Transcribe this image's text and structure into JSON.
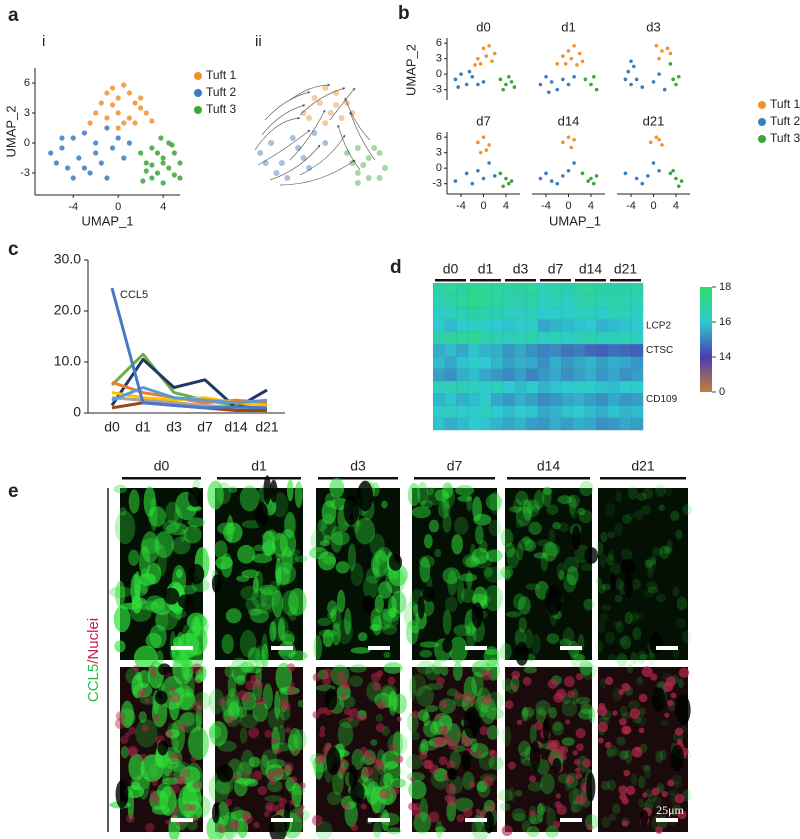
{
  "panel_labels": [
    "a",
    "b",
    "c",
    "d",
    "e"
  ],
  "chart_data": [
    {
      "type": "scatter",
      "subtitle": "i",
      "xlabel": "UMAP_1",
      "ylabel": "UMAP_2",
      "xlim": [
        -7.4,
        5.5
      ],
      "ylim": [
        -5.2,
        7.5
      ],
      "xticks": [
        -4,
        0,
        4
      ],
      "yticks": [
        -3,
        0,
        3,
        6
      ],
      "legend": "right",
      "series": [
        {
          "name": "Tuft 1",
          "color": "#f0922b",
          "x": [
            -2,
            -1.5,
            -1,
            -0.5,
            0,
            0.5,
            1,
            1.5,
            2,
            2.5,
            -1,
            0,
            1,
            2,
            -0.5,
            0.5,
            1.5,
            -2.5,
            3,
            0
          ],
          "y": [
            3,
            4,
            5,
            5.5,
            4.5,
            5.8,
            5,
            4,
            4.5,
            3,
            2.5,
            3,
            2.5,
            3.5,
            3.8,
            2,
            2,
            2,
            2.2,
            1.5
          ]
        },
        {
          "name": "Tuft 2",
          "color": "#3a7dbf",
          "x": [
            -6,
            -5.5,
            -5,
            -4.5,
            -4,
            -3.5,
            -3,
            -2.5,
            -2,
            -1.5,
            -1,
            -0.5,
            0,
            0.5,
            1,
            -4,
            -3,
            -2,
            -5,
            -1
          ],
          "y": [
            -1,
            -2,
            -0.5,
            -2.5,
            0.5,
            -1.5,
            1,
            -3,
            0,
            -2,
            1.5,
            -0.5,
            0.5,
            -1.5,
            0,
            -3.5,
            -2.5,
            -1,
            0.5,
            -3.5
          ]
        },
        {
          "name": "Tuft 3",
          "color": "#3aa63a",
          "x": [
            2,
            2.5,
            3,
            3.5,
            4,
            4.5,
            5,
            5.5,
            3,
            4,
            5,
            3.5,
            4.5,
            2.5,
            5.5,
            4,
            3,
            4.8,
            3.8,
            2.2
          ],
          "y": [
            -1,
            -2,
            -0.5,
            -3,
            -1.5,
            -2.5,
            -1,
            -2,
            -3.5,
            -4,
            -3.2,
            -1,
            0,
            -2.8,
            -3.5,
            -2,
            -2.2,
            -0.2,
            0.5,
            -3.8
          ]
        }
      ]
    },
    {
      "type": "stream",
      "subtitle": "ii",
      "xlim": [
        -7.4,
        5.5
      ],
      "ylim": [
        -5.2,
        7.5
      ],
      "series": [
        {
          "color": "#f0a050",
          "x": [
            -2,
            -1,
            0,
            1,
            2,
            -1.5,
            0.5,
            1.5,
            -0.5,
            2.5,
            0,
            1
          ],
          "y": [
            3,
            4.5,
            5.5,
            5,
            4,
            2.5,
            3,
            2.5,
            4,
            3,
            2,
            3.8
          ]
        },
        {
          "color": "#5a90c8",
          "x": [
            -6,
            -5,
            -4,
            -3,
            -2,
            -1,
            0,
            -4.5,
            -3.5,
            -2.5,
            -1.5,
            -5.5
          ],
          "y": [
            -1,
            0,
            -2,
            0.5,
            -1.5,
            1,
            0,
            -3,
            -3.5,
            -0.5,
            -2.5,
            -2
          ]
        },
        {
          "color": "#5cb85c",
          "x": [
            2,
            3,
            4,
            5,
            5.5,
            3,
            4,
            2.5,
            4.5,
            3.5,
            5,
            3
          ],
          "y": [
            -1,
            -0.5,
            -1.5,
            -1,
            -2.5,
            -3,
            -3.5,
            -2,
            -0.5,
            -2.2,
            -3.5,
            -4
          ]
        }
      ]
    },
    {
      "type": "facet-scatter",
      "xlabel": "UMAP_1",
      "ylabel": "UMAP_2",
      "xlim": [
        -6.5,
        6.5
      ],
      "ylim": [
        -5,
        7
      ],
      "xticks": [
        -4,
        0,
        4
      ],
      "yticks": [
        -3,
        0,
        3,
        6
      ],
      "legend": "right",
      "series": [
        {
          "name": "Tuft 1",
          "color": "#f0922b"
        },
        {
          "name": "Tuft 2",
          "color": "#3a7dbf"
        },
        {
          "name": "Tuft 3",
          "color": "#3aa63a"
        }
      ],
      "facets": [
        {
          "title": "d0",
          "series": [
            {
              "x": [
                -1,
                0,
                1,
                2,
                -0.5,
                0.5,
                1.5,
                -1.5
              ],
              "y": [
                3,
                5,
                5.5,
                4,
                2,
                3.5,
                2.5,
                1.8
              ]
            },
            {
              "x": [
                -5,
                -4,
                -3,
                -2,
                -1,
                0,
                -4.5,
                -2.5
              ],
              "y": [
                -1,
                0,
                -2,
                -0.5,
                -2,
                -1.5,
                -2.5,
                0.5
              ]
            },
            {
              "x": [
                3,
                4,
                5,
                3.5,
                4.5,
                5.5
              ],
              "y": [
                -1,
                -2,
                -1.5,
                -3,
                -0.5,
                -2.5
              ]
            }
          ]
        },
        {
          "title": "d1",
          "series": [
            {
              "x": [
                -2,
                -1,
                0,
                1,
                2,
                2.5,
                -0.5,
                0.5,
                1.5
              ],
              "y": [
                2,
                3.5,
                4.5,
                5.5,
                4,
                2.5,
                2,
                3,
                1.8
              ]
            },
            {
              "x": [
                -5,
                -4,
                -3,
                -2,
                -1,
                0,
                1,
                -3.5
              ],
              "y": [
                -2,
                -0.5,
                -1.5,
                -3,
                -1,
                -2,
                -0.5,
                -3.5
              ]
            },
            {
              "x": [
                3,
                4,
                5,
                4.5
              ],
              "y": [
                -1,
                -2,
                -3,
                -0.5
              ]
            }
          ]
        },
        {
          "title": "d3",
          "series": [
            {
              "x": [
                0.5,
                1.5,
                2.5,
                3,
                1
              ],
              "y": [
                5.5,
                4.5,
                5,
                4,
                3
              ]
            },
            {
              "x": [
                -5,
                -4.5,
                -4,
                -3.5,
                -3,
                -2,
                0,
                1,
                2,
                -4
              ],
              "y": [
                -1,
                0.5,
                -2,
                1.5,
                -1,
                -2.5,
                -1.5,
                0,
                -3,
                2.5
              ]
            },
            {
              "x": [
                3.5,
                4,
                4.5,
                3
              ],
              "y": [
                -1,
                -2,
                -0.5,
                2
              ]
            }
          ]
        },
        {
          "title": "d7",
          "series": [
            {
              "x": [
                -1,
                0,
                1,
                0.5,
                -0.5
              ],
              "y": [
                5,
                6,
                4.5,
                3.5,
                3
              ]
            },
            {
              "x": [
                -5,
                -3,
                -2,
                -1,
                0,
                1,
                2
              ],
              "y": [
                -2.5,
                -1,
                -3,
                -0.5,
                -2,
                1,
                -1.5
              ]
            },
            {
              "x": [
                3,
                4,
                4.5,
                5,
                3.5
              ],
              "y": [
                -1,
                -2,
                -3,
                -2.5,
                -3.5
              ]
            }
          ]
        },
        {
          "title": "d14",
          "series": [
            {
              "x": [
                -1,
                0,
                1,
                0.5
              ],
              "y": [
                5,
                6,
                5.5,
                4
              ]
            },
            {
              "x": [
                -5,
                -4,
                -3,
                -2,
                -1,
                0,
                1
              ],
              "y": [
                -2,
                -1,
                -2.5,
                -3,
                -1.5,
                -0.5,
                1
              ]
            },
            {
              "x": [
                2.5,
                3.5,
                4,
                4.5,
                5
              ],
              "y": [
                -1,
                -2.5,
                -2,
                -3,
                -1.5
              ]
            }
          ]
        },
        {
          "title": "d21",
          "series": [
            {
              "x": [
                -0.5,
                0.5,
                1,
                1.5
              ],
              "y": [
                5,
                6,
                5.5,
                4.5
              ]
            },
            {
              "x": [
                -5,
                -3,
                -2,
                -1,
                0,
                1
              ],
              "y": [
                -1,
                -2,
                -3,
                -1.5,
                1,
                -0.5
              ]
            },
            {
              "x": [
                3,
                4,
                4.5,
                5,
                3.5
              ],
              "y": [
                -1,
                -2,
                -3.5,
                -2.5,
                -0.5
              ]
            }
          ]
        }
      ]
    },
    {
      "type": "line",
      "categories": [
        "d0",
        "d1",
        "d3",
        "d7",
        "d14",
        "d21"
      ],
      "ylim": [
        0,
        30
      ],
      "yticks": [
        0,
        {
          "value": 10,
          "label": "10.0"
        },
        {
          "value": 20,
          "label": "20.0"
        },
        {
          "value": 30,
          "label": "30.0"
        }
      ],
      "annotations": [
        {
          "text": "CCL5"
        }
      ],
      "series": [
        {
          "name": "CCL5",
          "color": "#4a78c8",
          "values": [
            24.5,
            2,
            1.5,
            1,
            1.2,
            1
          ]
        },
        {
          "color": "#70ad47",
          "values": [
            5.5,
            11.5,
            4,
            2.5,
            1.5,
            2
          ]
        },
        {
          "color": "#1f3864",
          "values": [
            1.5,
            10.5,
            5,
            6.5,
            1,
            4.5
          ]
        },
        {
          "color": "#ed7d31",
          "values": [
            6,
            4,
            3,
            2,
            2.5,
            2
          ]
        },
        {
          "color": "#ffc000",
          "values": [
            4,
            3,
            2.5,
            3,
            2,
            1.5
          ]
        },
        {
          "color": "#a5a5a5",
          "values": [
            3,
            2.5,
            2,
            1.5,
            1,
            1
          ]
        },
        {
          "color": "#5b9bd5",
          "values": [
            2.5,
            5,
            3,
            2.5,
            2,
            2.5
          ]
        },
        {
          "color": "#9e480e",
          "values": [
            1,
            2,
            1.5,
            1,
            0.5,
            0.5
          ]
        }
      ]
    },
    {
      "type": "heatmap",
      "column_groups": [
        "d0",
        "d1",
        "d3",
        "d7",
        "d14",
        "d21"
      ],
      "row_labels": [
        null,
        null,
        null,
        "LCP2",
        null,
        "CTSC",
        null,
        null,
        null,
        "CD109",
        null,
        null
      ],
      "colorbar": {
        "ticks": [
          18,
          16,
          14,
          0
        ],
        "colors": [
          "#2fdc6a",
          "#2ecad0",
          "#4a3cb0",
          "#c4803c"
        ]
      },
      "values": [
        [
          16.8,
          17,
          16.9,
          17.2,
          17.1,
          17,
          16.8,
          16.9,
          17,
          16.5,
          16.7,
          16.6,
          16.9,
          17,
          16.8,
          16.7,
          16.8,
          16.9
        ],
        [
          16.5,
          16.8,
          17,
          17.3,
          17.2,
          16.9,
          16.7,
          16.6,
          16.8,
          16.4,
          16.5,
          16.3,
          16.6,
          16.8,
          16.5,
          16.7,
          16.6,
          16.5
        ],
        [
          16.2,
          16.4,
          16.5,
          16.8,
          16.7,
          16.6,
          16.3,
          16.2,
          16.5,
          16,
          16.1,
          16.2,
          16.4,
          16.3,
          16.1,
          16.5,
          16.4,
          16.2
        ],
        [
          16,
          15.8,
          16.1,
          16.3,
          16.2,
          16,
          15.9,
          16,
          16.2,
          15.5,
          15.7,
          15.8,
          15.9,
          16,
          15.7,
          15.8,
          15.9,
          16
        ],
        [
          16.7,
          16.9,
          17,
          17.2,
          16.8,
          16.6,
          16.4,
          16.5,
          16.7,
          16.3,
          16.5,
          16.2,
          16.4,
          16.6,
          16.3,
          16.4,
          16.5,
          16.3
        ],
        [
          15.6,
          15.8,
          15.5,
          15.9,
          15.7,
          15.6,
          15.3,
          15.5,
          15.2,
          15,
          15.1,
          14.8,
          14.9,
          14.6,
          14.5,
          14.7,
          14.6,
          14.5
        ],
        [
          15.8,
          15.5,
          15.9,
          16.1,
          16,
          15.7,
          15.4,
          15.6,
          15.5,
          15.2,
          15.6,
          15.3,
          15.5,
          15.7,
          15.4,
          15.6,
          15.5,
          15.3
        ],
        [
          15.4,
          15.2,
          15.6,
          15.8,
          15.5,
          15.3,
          15.1,
          15.4,
          15,
          15.3,
          15.5,
          15.2,
          15.4,
          15.6,
          15.3,
          15.5,
          15.2,
          15.4
        ],
        [
          16.3,
          16.5,
          16.6,
          16.4,
          16.2,
          16.5,
          16,
          15.8,
          16.1,
          15.7,
          15.9,
          16,
          16.2,
          16.1,
          15.9,
          15.8,
          16,
          16.1
        ],
        [
          15.7,
          15.9,
          15.6,
          15.8,
          16,
          15.5,
          15.3,
          15.6,
          15.4,
          15.1,
          15.3,
          15.5,
          15.6,
          15.4,
          15.2,
          15.5,
          15.3,
          15.4
        ],
        [
          16.1,
          16.3,
          16,
          16.2,
          16.4,
          16,
          15.8,
          16,
          15.9,
          15.5,
          15.7,
          15.9,
          16,
          15.8,
          15.6,
          15.9,
          15.7,
          15.8
        ],
        [
          15.9,
          15.6,
          15.8,
          16,
          15.9,
          15.7,
          15.5,
          15.7,
          15.4,
          15.3,
          15.6,
          15.4,
          15.6,
          15.5,
          15.2,
          15.3,
          15.5,
          15.4
        ]
      ]
    }
  ],
  "micrographs": {
    "columns": [
      "d0",
      "d1",
      "d3",
      "d7",
      "d14",
      "d21"
    ],
    "stain_labels": [
      "CCL5",
      "/Nuclei"
    ],
    "scale_bar": "25μm"
  }
}
